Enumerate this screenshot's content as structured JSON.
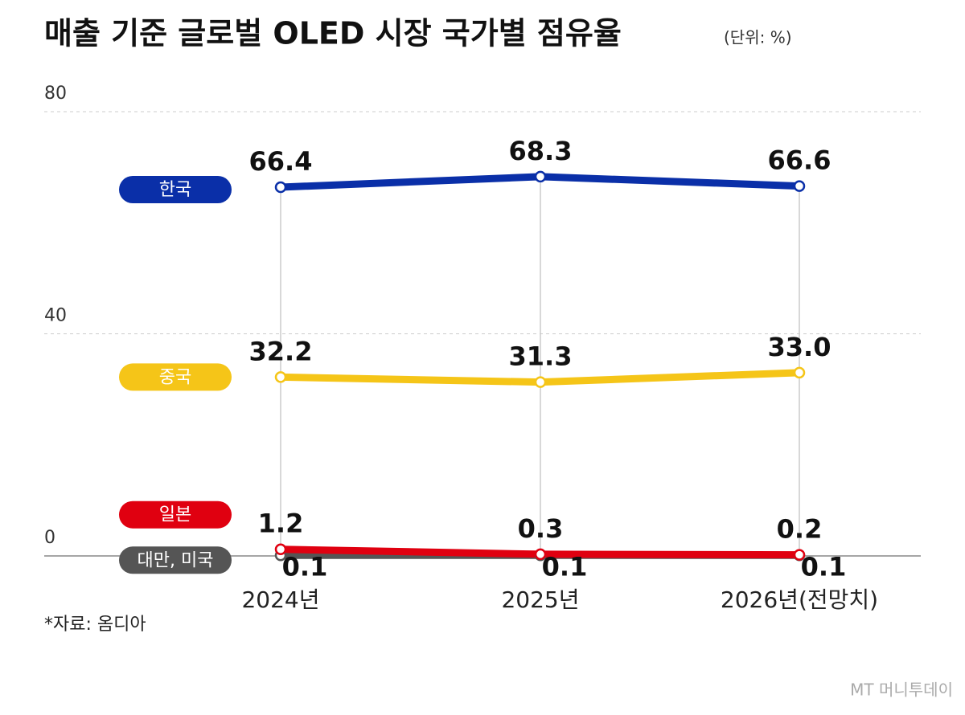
{
  "chart_data": {
    "type": "line",
    "title": "매출 기준 글로벌 OLED 시장 국가별 점유율",
    "subtitle": "(단위: %)",
    "source": "*자료: 옴디아",
    "watermark": "MT 머니투데이",
    "categories": [
      "2024년",
      "2025년",
      "2026년(전망치)"
    ],
    "series": [
      {
        "name": "한국",
        "color": "#0a2fa8",
        "values": [
          66.4,
          68.3,
          66.6
        ]
      },
      {
        "name": "중국",
        "color": "#f5c518",
        "values": [
          32.2,
          31.3,
          33.0
        ],
        "value_labels": [
          "32.2",
          "31.3",
          "33.0"
        ]
      },
      {
        "name": "일본",
        "color": "#e00010",
        "values": [
          1.2,
          0.3,
          0.2
        ]
      },
      {
        "name": "대만, 미국",
        "color": "#555555",
        "values": [
          0.1,
          0.1,
          0.1
        ]
      }
    ],
    "ylim": [
      0,
      80
    ],
    "yticks": [
      0,
      40,
      80
    ],
    "grid": true
  }
}
